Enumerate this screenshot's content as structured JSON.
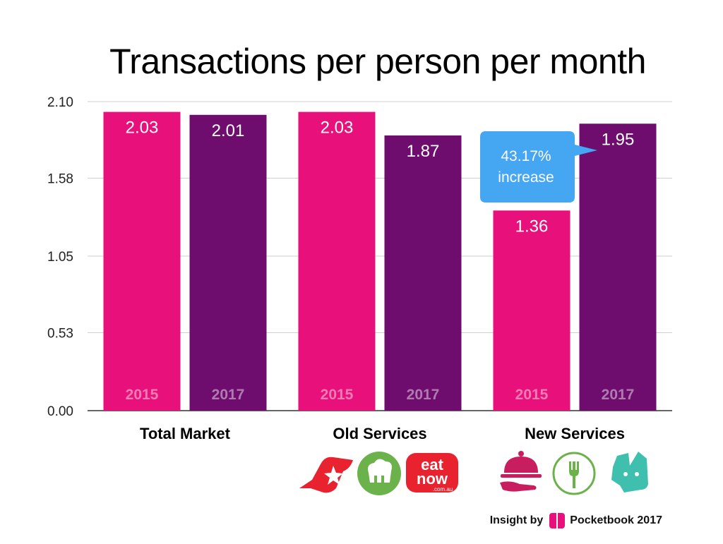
{
  "title": "Transactions per person per month",
  "chart_data": {
    "type": "bar",
    "title": "Transactions per person per month",
    "categories": [
      "Total Market",
      "Old Services",
      "New Services"
    ],
    "series": [
      {
        "name": "2015",
        "values": [
          2.03,
          2.03,
          1.36
        ]
      },
      {
        "name": "2017",
        "values": [
          2.01,
          1.87,
          1.95
        ]
      }
    ],
    "y_ticks": [
      "0.00",
      "0.53",
      "1.05",
      "1.58",
      "2.10"
    ],
    "ylim": [
      0,
      2.1
    ],
    "grid": true,
    "annotation": {
      "line1": "43.17%",
      "line2": "increase"
    },
    "colors": {
      "2015": "#e8107a",
      "2017": "#6e0d6e",
      "callout": "#45a6f2"
    }
  },
  "logos": {
    "old": [
      "menulog-icon",
      "chef-hat-icon",
      "eatnow-icon"
    ],
    "old_text": {
      "eat": "eat",
      "now": "now",
      "domain": ".com.au"
    },
    "new": [
      "cloche-icon",
      "fork-icon",
      "deliveroo-icon"
    ]
  },
  "footer": {
    "insight_by": "Insight by",
    "brand": "Pocketbook 2017",
    "brand_color": "#e8107a"
  }
}
